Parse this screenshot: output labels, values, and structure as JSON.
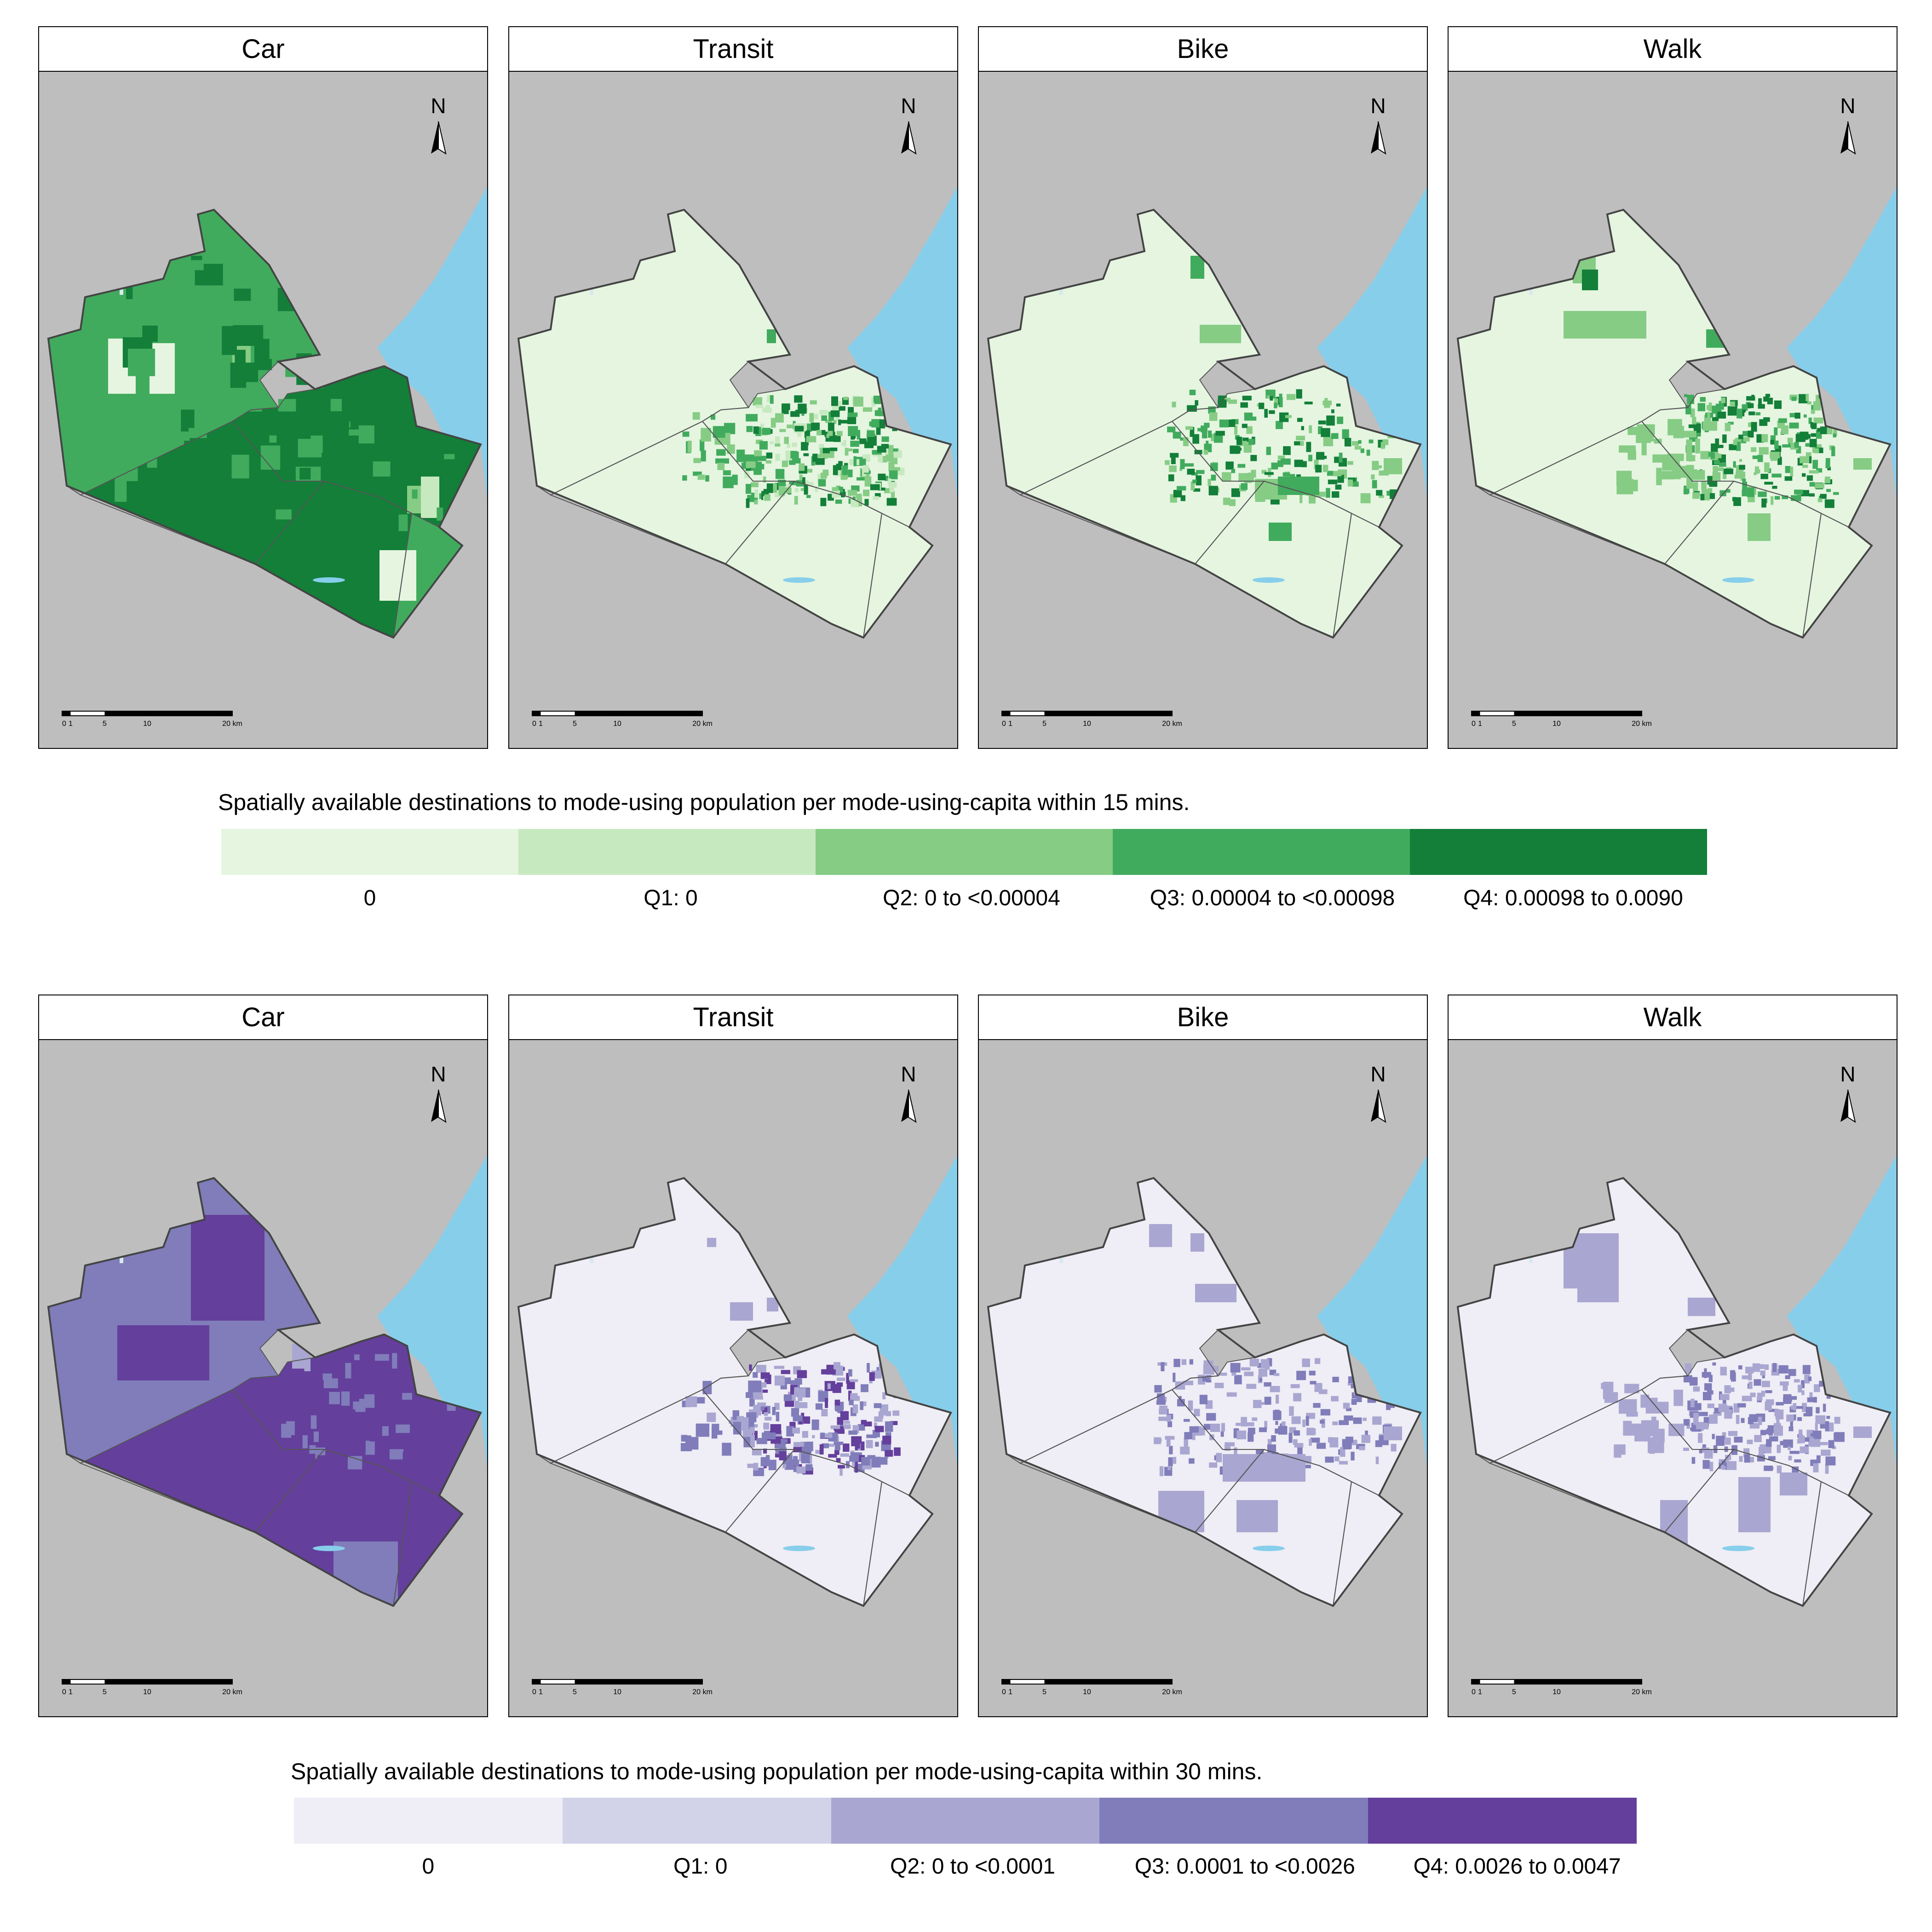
{
  "maps": [
    {
      "id": "15min",
      "legend": {
        "title": "Spatially available destinations to mode-using population per mode-using-capita within 15 mins.",
        "classes": [
          {
            "label": "0",
            "color": "#e5f5e0"
          },
          {
            "label": "Q1: 0",
            "color": "#c7e9c0"
          },
          {
            "label": "Q2: 0 to <0.00004",
            "color": "#86cc85"
          },
          {
            "label": "Q3: 0.00004 to <0.00098",
            "color": "#41ab5d"
          },
          {
            "label": "Q4: 0.00098 to 0.0090",
            "color": "#137f39"
          }
        ]
      },
      "panels": [
        {
          "mode": "Car",
          "north": "N"
        },
        {
          "mode": "Transit",
          "north": "N"
        },
        {
          "mode": "Bike",
          "north": "N"
        },
        {
          "mode": "Walk",
          "north": "N"
        }
      ]
    },
    {
      "id": "30min",
      "legend": {
        "title": "Spatially available destinations to mode-using population per mode-using-capita within 30 mins.",
        "classes": [
          {
            "label": "0",
            "color": "#efedf5"
          },
          {
            "label": "Q1: 0",
            "color": "#d2d2e8"
          },
          {
            "label": "Q2: 0 to <0.0001",
            "color": "#a9a6d1"
          },
          {
            "label": "Q3: 0.0001 to <0.0026",
            "color": "#807dba"
          },
          {
            "label": "Q4: 0.0026 to 0.0047",
            "color": "#643f9c"
          }
        ]
      },
      "panels": [
        {
          "mode": "Car",
          "north": "N"
        },
        {
          "mode": "Transit",
          "north": "N"
        },
        {
          "mode": "Bike",
          "north": "N"
        },
        {
          "mode": "Walk",
          "north": "N"
        }
      ]
    }
  ],
  "scalebar": {
    "ticks": [
      "0",
      "1",
      "5",
      "10",
      "20 km"
    ]
  },
  "colors": {
    "land": "#bebebe",
    "water": "#87ceeb",
    "border": "#555555"
  }
}
